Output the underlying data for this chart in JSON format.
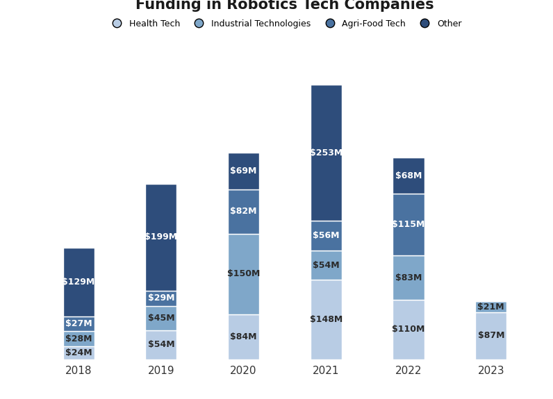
{
  "title": "Funding in Robotics Tech Companies",
  "years": [
    "2018",
    "2019",
    "2020",
    "2021",
    "2022",
    "2023"
  ],
  "categories": [
    "Health Tech",
    "Industrial Technologies",
    "Agri-Food Tech",
    "Other"
  ],
  "colors": [
    "#b8cce4",
    "#7fa7c9",
    "#4a72a0",
    "#2e4d7b"
  ],
  "text_colors": [
    "#2a2a2a",
    "#2a2a2a",
    "#ffffff",
    "#ffffff"
  ],
  "values": {
    "Health Tech": [
      24,
      54,
      84,
      148,
      110,
      87
    ],
    "Industrial Technologies": [
      28,
      45,
      150,
      54,
      83,
      21
    ],
    "Agri-Food Tech": [
      27,
      29,
      82,
      56,
      115,
      0
    ],
    "Other": [
      129,
      199,
      69,
      253,
      68,
      0
    ]
  },
  "labels": {
    "Health Tech": [
      "$24M",
      "$54M",
      "$84M",
      "$148M",
      "$110M",
      "$87M"
    ],
    "Industrial Technologies": [
      "$28M",
      "$45M",
      "$150M",
      "$54M",
      "$83M",
      "$21M"
    ],
    "Agri-Food Tech": [
      "$27M",
      "$29M",
      "$82M",
      "$56M",
      "$115M",
      ""
    ],
    "Other": [
      "$129M",
      "$199M",
      "$69M",
      "$253M",
      "$68M",
      ""
    ]
  },
  "background_color": "#ffffff",
  "title_fontsize": 15,
  "label_fontsize": 9,
  "bar_width": 0.38,
  "ylim": [
    0,
    580
  ]
}
